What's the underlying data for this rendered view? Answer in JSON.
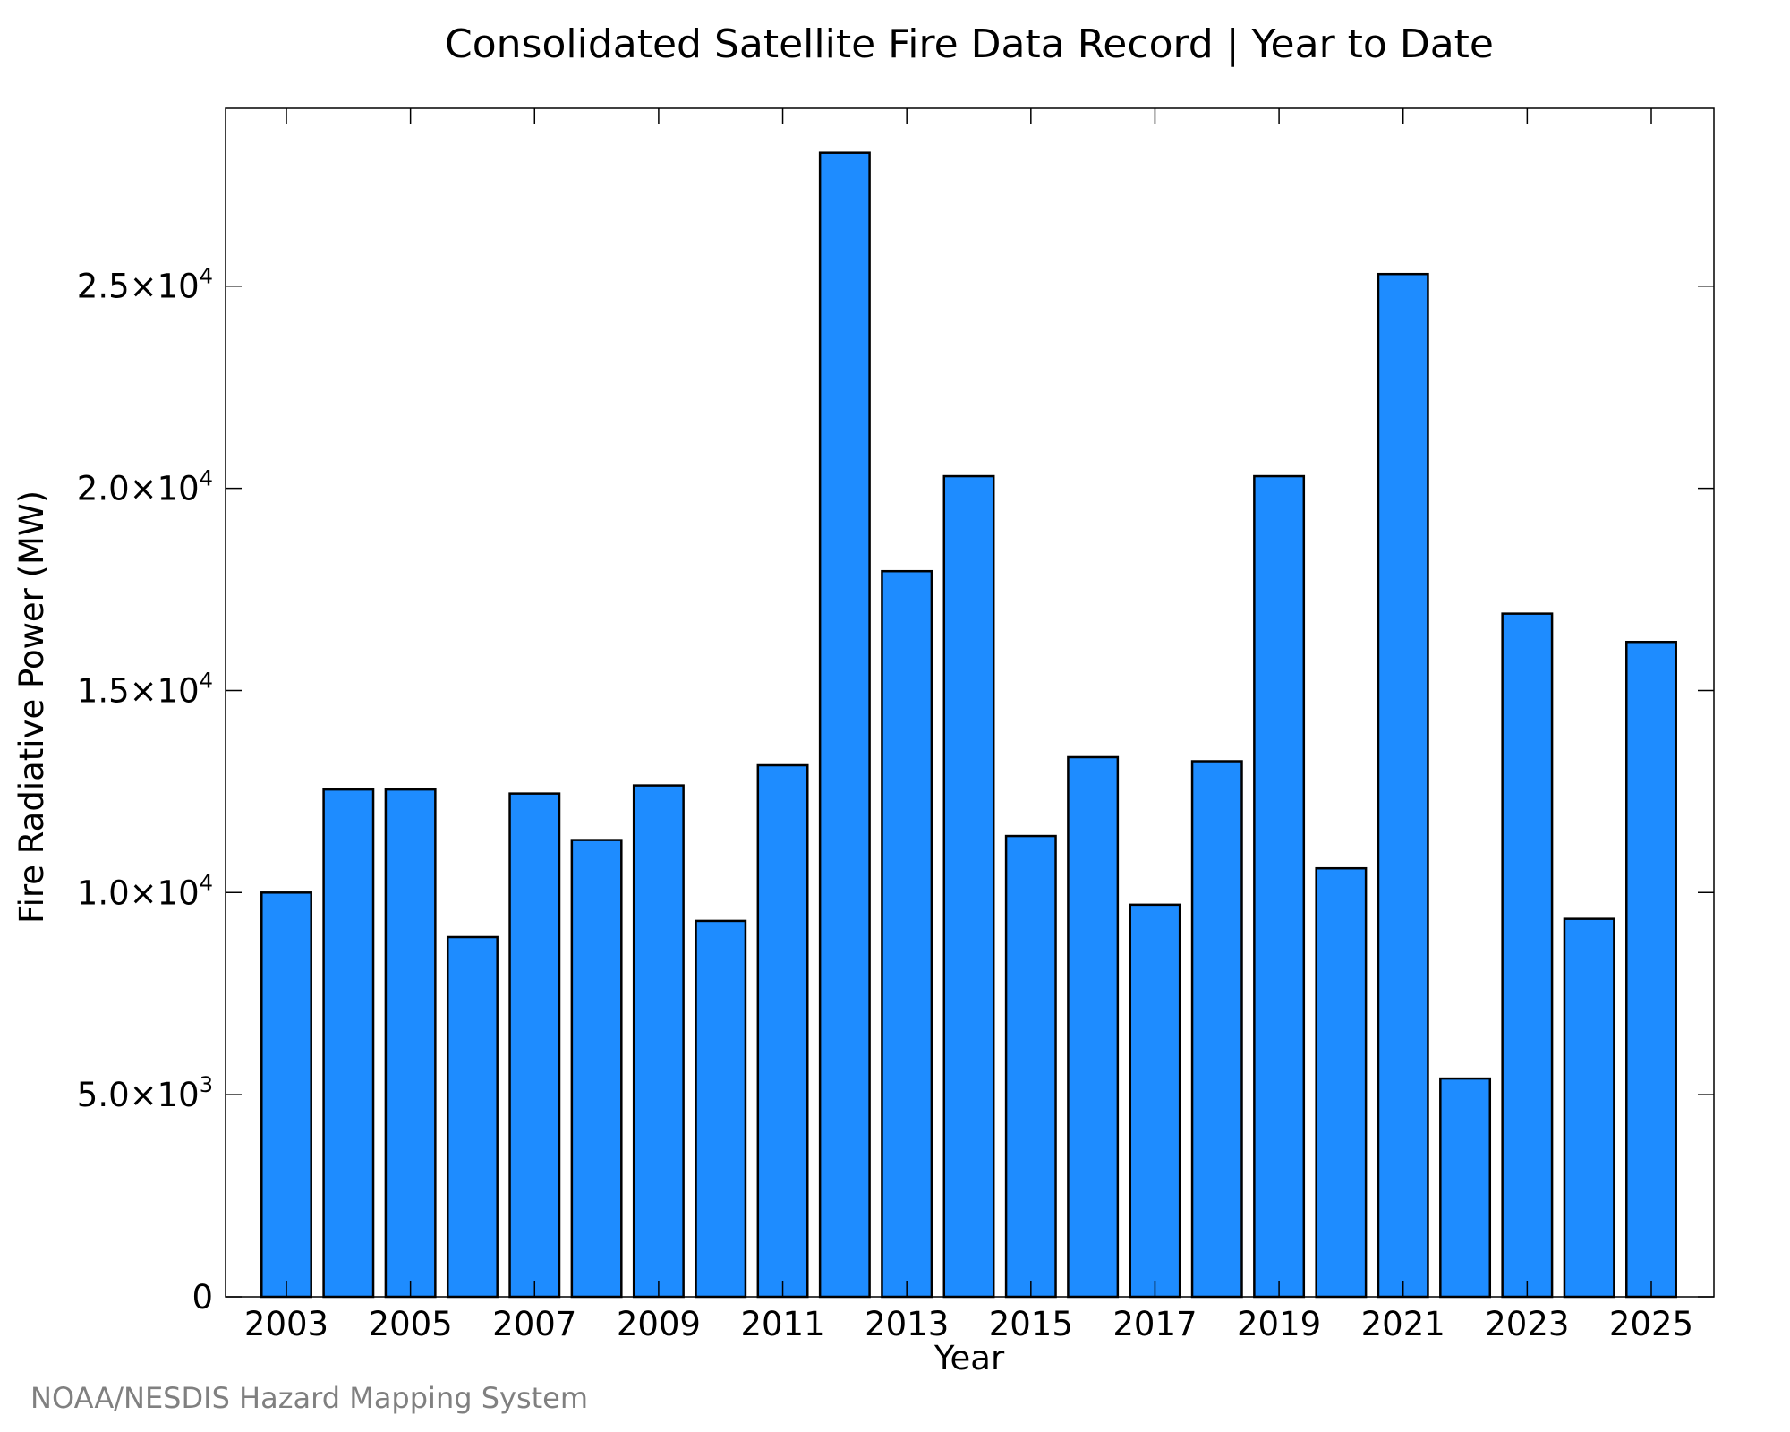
{
  "chart_data": {
    "type": "bar",
    "title": "Consolidated Satellite Fire Data Record | Year to Date",
    "xlabel": "Year",
    "ylabel": "Fire Radiative Power (MW)",
    "categories": [
      "2003",
      "2004",
      "2005",
      "2006",
      "2007",
      "2008",
      "2009",
      "2010",
      "2011",
      "2012",
      "2013",
      "2014",
      "2015",
      "2016",
      "2017",
      "2018",
      "2019",
      "2020",
      "2021",
      "2022",
      "2023",
      "2024",
      "2025"
    ],
    "values": [
      10000,
      12550,
      12550,
      8900,
      12450,
      11300,
      12650,
      9300,
      13150,
      28300,
      17950,
      20300,
      11400,
      13350,
      9700,
      13250,
      20300,
      10600,
      25300,
      5400,
      16900,
      9350,
      16200
    ],
    "x_tick_labels": [
      "2003",
      "2005",
      "2007",
      "2009",
      "2011",
      "2013",
      "2015",
      "2017",
      "2019",
      "2021",
      "2023",
      "2025"
    ],
    "y_ticks": [
      {
        "value": 0,
        "mantissa": "0",
        "exponent": ""
      },
      {
        "value": 5000,
        "mantissa": "5.0×10",
        "exponent": "3"
      },
      {
        "value": 10000,
        "mantissa": "1.0×10",
        "exponent": "4"
      },
      {
        "value": 15000,
        "mantissa": "1.5×10",
        "exponent": "4"
      },
      {
        "value": 20000,
        "mantissa": "2.0×10",
        "exponent": "4"
      },
      {
        "value": 25000,
        "mantissa": "2.5×10",
        "exponent": "4"
      }
    ],
    "ylim": [
      0,
      29400
    ],
    "grid": false,
    "bar_color": "#1e8cff",
    "edge_color": "#000000"
  },
  "footer": {
    "credit": "NOAA/NESDIS Hazard Mapping System"
  },
  "colors": {
    "credit_text": "#808080"
  }
}
